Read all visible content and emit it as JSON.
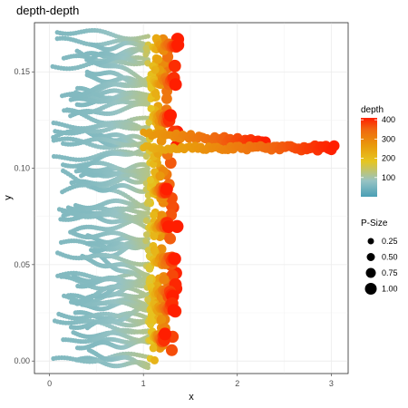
{
  "chart_data": {
    "type": "scatter",
    "title": "depth-depth",
    "xlabel": "x",
    "ylabel": "y",
    "xlim": [
      -0.16,
      3.18
    ],
    "ylim": [
      -0.0065,
      0.1755
    ],
    "x_ticks": [
      0,
      1,
      2,
      3
    ],
    "x_tick_labels": [
      "0",
      "1",
      "2",
      "3"
    ],
    "y_ticks": [
      0.0,
      0.05,
      0.1,
      0.15
    ],
    "y_tick_labels": [
      "0.00",
      "0.05",
      "0.10",
      "0.15"
    ],
    "grid": true,
    "legend_position": "right",
    "color_scale": {
      "title": "depth",
      "variable": "depth",
      "breaks": [
        100,
        200,
        300,
        400
      ],
      "break_labels": [
        "100",
        "200",
        "300",
        "400"
      ],
      "limits": [
        0,
        410
      ],
      "colors": [
        "#4a9fb5",
        "#96c3c4",
        "#e6c520",
        "#e99a0c",
        "#f06810",
        "#ff1e00"
      ]
    },
    "size_scale": {
      "title": "P-Size",
      "breaks": [
        0.25,
        0.5,
        0.75,
        1.0
      ],
      "break_labels": [
        "0.25",
        "0.50",
        "0.75",
        "1.00"
      ]
    },
    "curve_family": {
      "description_of_data": "traces x = 1.05*(depth/100)^0.5 - small noise, profiles over y; a second family near x~1.0-3.0 at y~0.111",
      "body_profiles": [
        {
          "x_start": 0.05,
          "x_end": 1.15,
          "y_min": 0.0,
          "y_max": 0.168
        },
        {
          "x_start": 0.1,
          "x_end": 1.28,
          "y_min": 0.003,
          "y_max": 0.16
        }
      ],
      "spike": {
        "y": 0.111,
        "x_start": 1.0,
        "x_end": 3.03
      }
    }
  }
}
